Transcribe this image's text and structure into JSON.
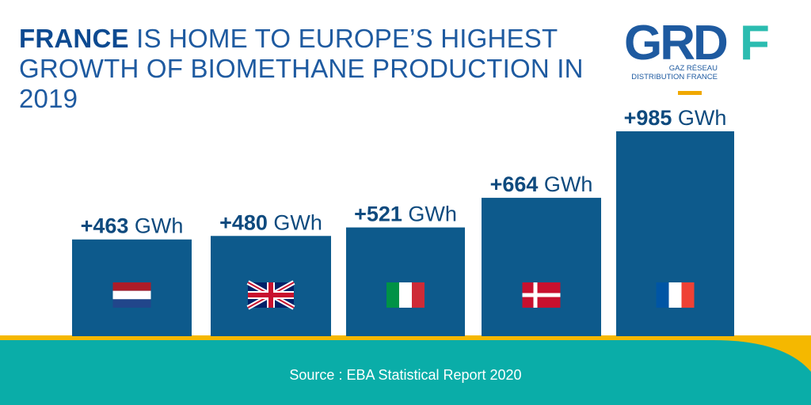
{
  "title": {
    "highlight": "FRANCE",
    "rest": " IS HOME TO EUROPE’S HIGHEST GROWTH OF BIOMETHANE PRODUCTION IN 2019"
  },
  "logo": {
    "text": "GRDF",
    "sub_line1": "GAZ RÉSEAU",
    "sub_line2": "DISTRIBUTION FRANCE"
  },
  "chart_data": {
    "type": "bar",
    "categories": [
      "Netherlands",
      "United Kingdom",
      "Italy",
      "Denmark",
      "France"
    ],
    "values": [
      463,
      480,
      521,
      664,
      985
    ],
    "labels": [
      "+463",
      "+480",
      "+521",
      "+664",
      "+985"
    ],
    "unit": "GWh",
    "flags": [
      "netherlands-flag",
      "uk-flag",
      "italy-flag",
      "denmark-flag",
      "france-flag"
    ]
  },
  "source": "Source : EBA Statistical Report 2020",
  "colors": {
    "bar": "#0d5a8c",
    "label": "#0e4a7e",
    "teal": "#0aada8",
    "yellow": "#f5b800",
    "title": "#1e5aa0"
  }
}
